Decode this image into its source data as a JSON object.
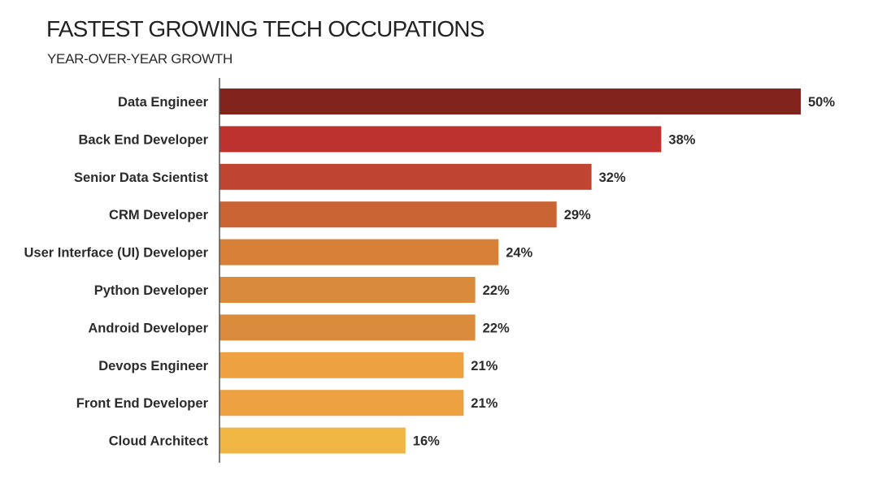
{
  "chart_data": {
    "type": "bar",
    "orientation": "horizontal",
    "title": "FASTEST GROWING TECH OCCUPATIONS",
    "subtitle": "YEAR-OVER-YEAR GROWTH",
    "xlabel": "",
    "ylabel": "",
    "xlim": [
      0,
      50
    ],
    "grid": false,
    "legend": "none",
    "categories": [
      "Data Engineer",
      "Back End Developer",
      "Senior Data Scientist",
      "CRM Developer",
      "User Interface (UI) Developer",
      "Python Developer",
      "Android Developer",
      "Devops Engineer",
      "Front End Developer",
      "Cloud Architect"
    ],
    "values": [
      50,
      38,
      32,
      29,
      24,
      22,
      22,
      21,
      21,
      16
    ],
    "data_labels": [
      "50%",
      "38%",
      "32%",
      "29%",
      "24%",
      "22%",
      "22%",
      "21%",
      "21%",
      "16%"
    ],
    "colors": [
      "#82241e",
      "#bd322e",
      "#bf4432",
      "#cb6435",
      "#d98038",
      "#d98a3b",
      "#db8b3c",
      "#eda141",
      "#eda141",
      "#efb644"
    ],
    "axis_color": "#555555"
  }
}
